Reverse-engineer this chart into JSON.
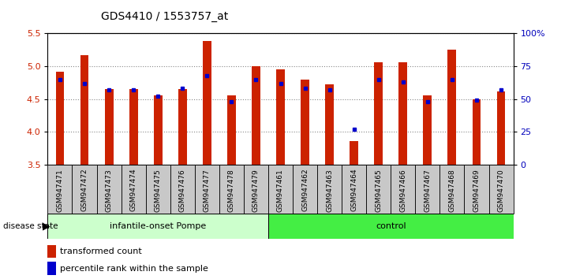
{
  "title": "GDS4410 / 1553757_at",
  "samples": [
    "GSM947471",
    "GSM947472",
    "GSM947473",
    "GSM947474",
    "GSM947475",
    "GSM947476",
    "GSM947477",
    "GSM947478",
    "GSM947479",
    "GSM947461",
    "GSM947462",
    "GSM947463",
    "GSM947464",
    "GSM947465",
    "GSM947466",
    "GSM947467",
    "GSM947468",
    "GSM947469",
    "GSM947470"
  ],
  "red_values": [
    4.92,
    5.17,
    4.65,
    4.65,
    4.56,
    4.65,
    5.38,
    4.56,
    5.0,
    4.95,
    4.8,
    4.72,
    3.86,
    5.06,
    5.06,
    4.56,
    5.25,
    4.5,
    4.62
  ],
  "blue_pct": [
    65,
    62,
    57,
    57,
    52,
    58,
    68,
    48,
    65,
    62,
    58,
    57,
    27,
    65,
    63,
    48,
    65,
    49,
    57
  ],
  "ymin": 3.5,
  "ymax": 5.5,
  "yticks_left": [
    3.5,
    4.0,
    4.5,
    5.0,
    5.5
  ],
  "yticks_right": [
    0,
    25,
    50,
    75,
    100
  ],
  "group1_label": "infantile-onset Pompe",
  "group2_label": "control",
  "group1_count": 9,
  "group2_count": 10,
  "bar_color": "#cc2200",
  "dot_color": "#0000cc",
  "group1_bg": "#ccffcc",
  "group2_bg": "#44ee44",
  "tick_bg": "#d0d0d0",
  "legend_red": "transformed count",
  "legend_blue": "percentile rank within the sample",
  "left_tick_color": "#cc2200",
  "right_tick_color": "#0000bb"
}
